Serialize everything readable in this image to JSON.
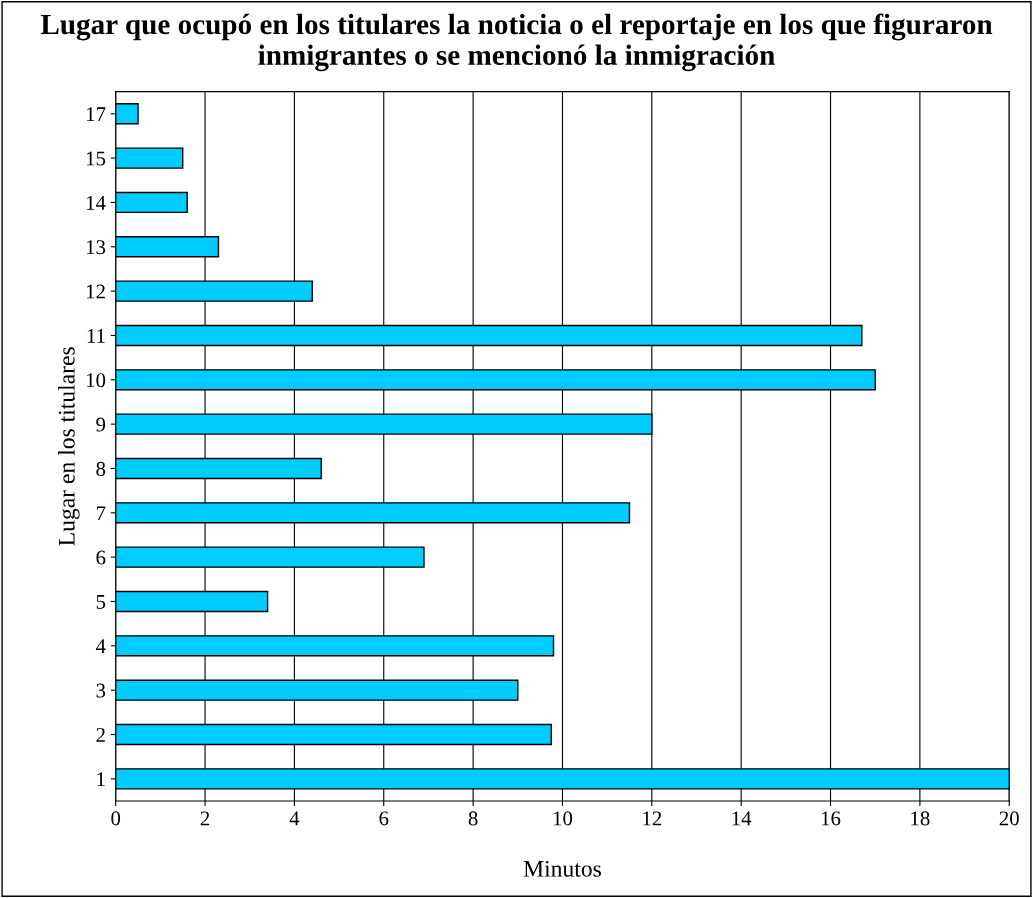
{
  "chart_data": {
    "type": "bar",
    "orientation": "horizontal",
    "title": "Lugar que ocupó en los titulares la noticia o el reportaje en los que figuraron inmigrantes o se mencionó la inmigración",
    "xlabel": "Minutos",
    "ylabel": "Lugar en los titulares",
    "categories": [
      "17",
      "15",
      "14",
      "13",
      "12",
      "11",
      "10",
      "9",
      "8",
      "7",
      "6",
      "5",
      "4",
      "3",
      "2",
      "1"
    ],
    "values": [
      0.5,
      1.5,
      1.6,
      2.3,
      4.4,
      16.7,
      17.0,
      12.0,
      4.6,
      11.5,
      6.9,
      3.4,
      9.8,
      9.0,
      9.75,
      20.0
    ],
    "color": "#00ccff",
    "xlim": [
      0,
      20
    ],
    "xticks": [
      0,
      2,
      4,
      6,
      8,
      10,
      12,
      14,
      16,
      18,
      20
    ],
    "grid": "x",
    "legend": false
  }
}
